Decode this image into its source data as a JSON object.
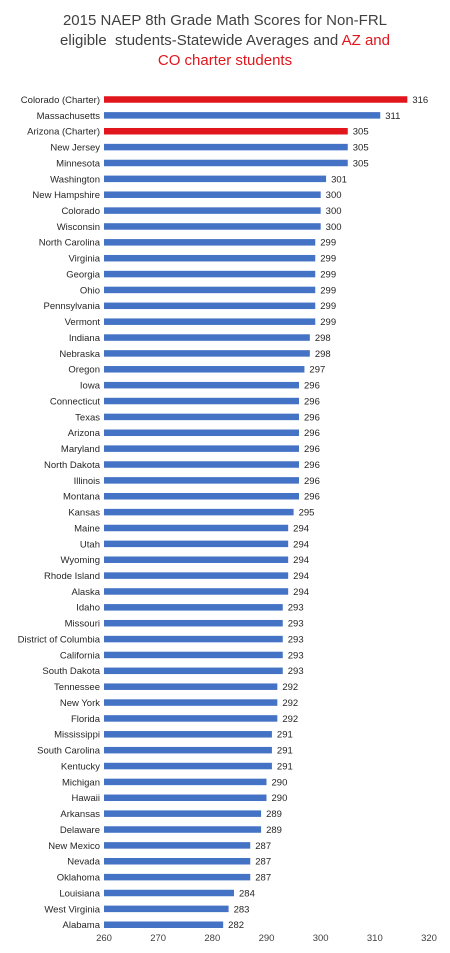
{
  "chart_data": {
    "type": "bar",
    "orientation": "horizontal",
    "title_lines": [
      {
        "parts": [
          {
            "text": "2015 NAEP 8th Grade Math Scores for Non-FRL",
            "highlight": false
          }
        ]
      },
      {
        "parts": [
          {
            "text": "eligible  students-Statewide Averages and ",
            "highlight": false
          },
          {
            "text": "AZ and",
            "highlight": true
          }
        ]
      },
      {
        "parts": [
          {
            "text": "CO charter students",
            "highlight": true
          }
        ]
      }
    ],
    "categories": [
      "Colorado (Charter)",
      "Massachusetts",
      "Arizona (Charter)",
      "New Jersey",
      "Minnesota",
      "Washington",
      "New Hampshire",
      "Colorado",
      "Wisconsin",
      "North Carolina",
      "Virginia",
      "Georgia",
      "Ohio",
      "Pennsylvania",
      "Vermont",
      "Indiana",
      "Nebraska",
      "Oregon",
      "Iowa",
      "Connecticut",
      "Texas",
      "Arizona",
      "Maryland",
      "North Dakota",
      "Illinois",
      "Montana",
      "Kansas",
      "Maine",
      "Utah",
      "Wyoming",
      "Rhode Island",
      "Alaska",
      "Idaho",
      "Missouri",
      "District of Columbia",
      "California",
      "South Dakota",
      "Tennessee",
      "New York",
      "Florida",
      "Mississippi",
      "South Carolina",
      "Kentucky",
      "Michigan",
      "Hawaii",
      "Arkansas",
      "Delaware",
      "New Mexico",
      "Nevada",
      "Oklahoma",
      "Louisiana",
      "West Virginia",
      "Alabama"
    ],
    "values": [
      316,
      311,
      305,
      305,
      305,
      301,
      300,
      300,
      300,
      299,
      299,
      299,
      299,
      299,
      299,
      298,
      298,
      297,
      296,
      296,
      296,
      296,
      296,
      296,
      296,
      296,
      295,
      294,
      294,
      294,
      294,
      294,
      293,
      293,
      293,
      293,
      293,
      292,
      292,
      292,
      291,
      291,
      291,
      290,
      290,
      289,
      289,
      287,
      287,
      287,
      284,
      283,
      282
    ],
    "highlighted": [
      "Colorado (Charter)",
      "Arizona (Charter)"
    ],
    "xlim": [
      260,
      320
    ],
    "xticks": [
      260,
      270,
      280,
      290,
      300,
      310,
      320
    ],
    "grid": false,
    "legend": "none",
    "colors": {
      "bar": "#4472c4",
      "highlight": "#e0161c",
      "title": "#404040",
      "title_highlight": "#e0161c"
    }
  }
}
